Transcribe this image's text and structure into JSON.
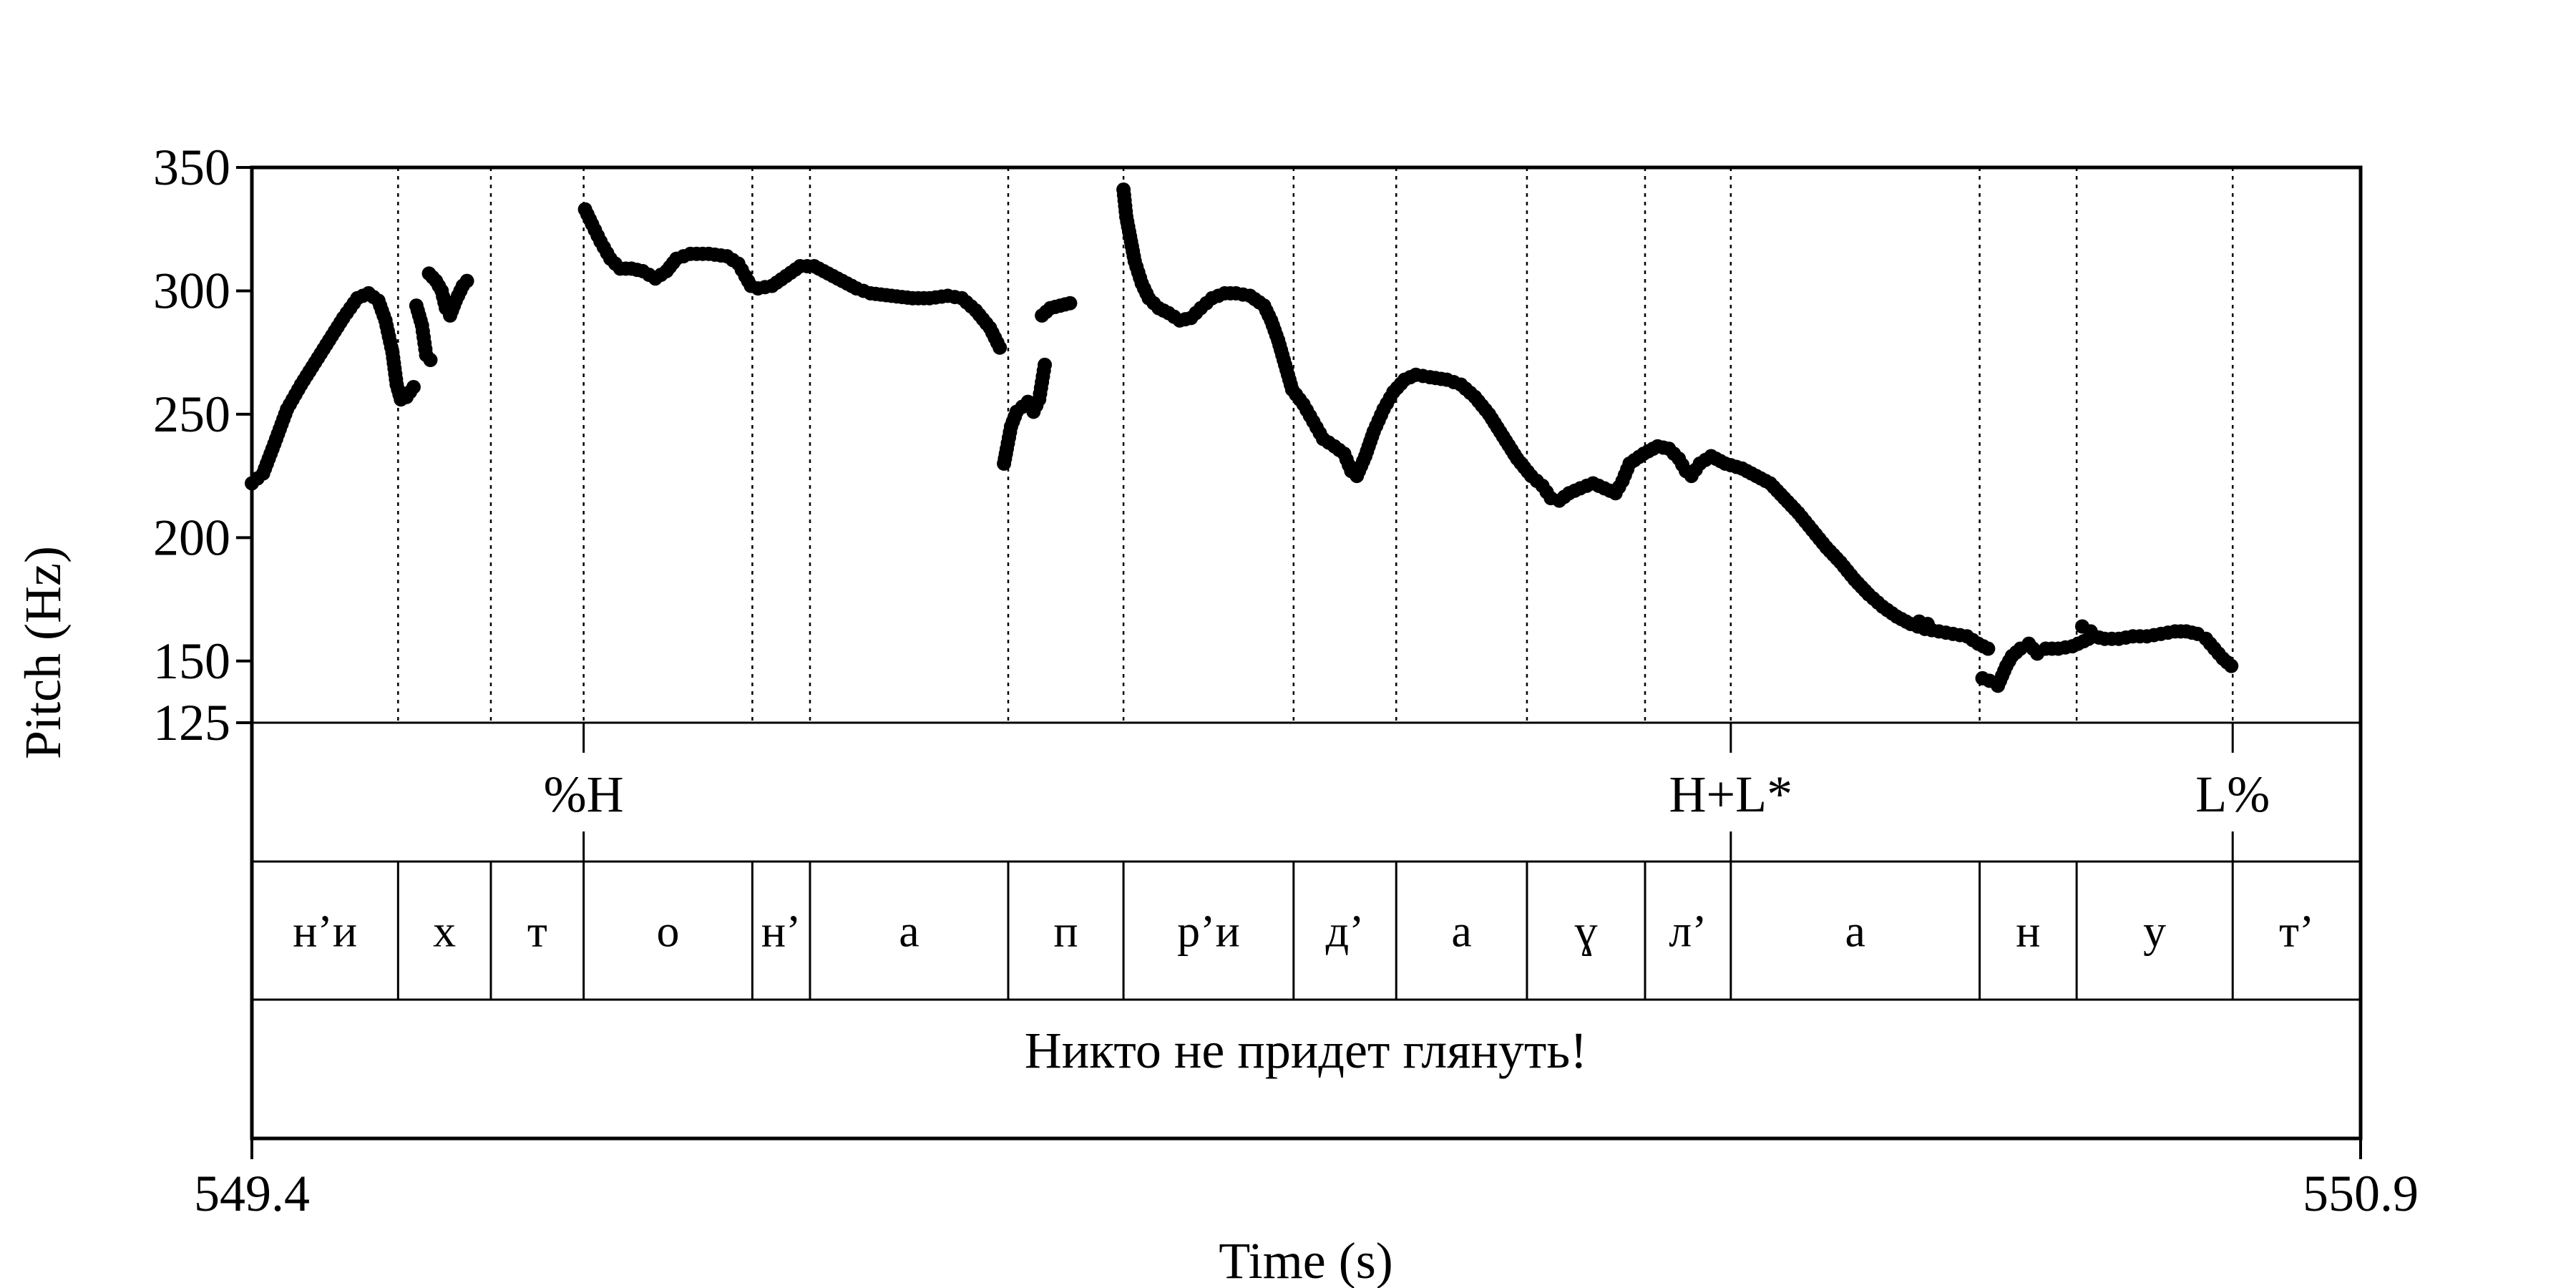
{
  "chart_data": {
    "type": "scatter",
    "xlabel": "Time (s)",
    "ylabel": "Pitch (Hz)",
    "xlim": [
      549.4,
      550.9
    ],
    "ylim": [
      125,
      350
    ],
    "x_ticks": [
      "549.4",
      "550.9"
    ],
    "y_ticks": [
      125,
      150,
      200,
      250,
      300,
      350
    ],
    "y_tick_labels": [
      "125",
      "150",
      "200",
      "250",
      "300",
      "350"
    ],
    "boundaries": [
      549.504,
      549.57,
      549.636,
      549.756,
      549.797,
      549.938,
      550.02,
      550.141,
      550.214,
      550.307,
      550.391,
      550.452,
      550.629,
      550.698,
      550.809
    ],
    "tones": [
      {
        "label": "%H",
        "t": 549.636
      },
      {
        "label": "H+L*",
        "t": 550.452
      },
      {
        "label": "L%",
        "t": 550.809
      }
    ],
    "segments": [
      {
        "label": "н’и",
        "start": 549.4,
        "end": 549.504
      },
      {
        "label": "х",
        "start": 549.504,
        "end": 549.57
      },
      {
        "label": "т",
        "start": 549.57,
        "end": 549.636
      },
      {
        "label": "о",
        "start": 549.636,
        "end": 549.756
      },
      {
        "label": "н’",
        "start": 549.756,
        "end": 549.797
      },
      {
        "label": "а",
        "start": 549.797,
        "end": 549.938
      },
      {
        "label": "п",
        "start": 549.938,
        "end": 550.02
      },
      {
        "label": "р’и",
        "start": 550.02,
        "end": 550.141
      },
      {
        "label": "д’",
        "start": 550.141,
        "end": 550.214
      },
      {
        "label": "а",
        "start": 550.214,
        "end": 550.307
      },
      {
        "label": "ɣ",
        "start": 550.307,
        "end": 550.391
      },
      {
        "label": "л’",
        "start": 550.391,
        "end": 550.452
      },
      {
        "label": "а",
        "start": 550.452,
        "end": 550.629
      },
      {
        "label": "н",
        "start": 550.629,
        "end": 550.698
      },
      {
        "label": "у",
        "start": 550.698,
        "end": 550.809
      },
      {
        "label": "т’",
        "start": 550.809,
        "end": 550.9
      }
    ],
    "sentence": "Никто не придет глянуть!",
    "pitch_segments": [
      [
        [
          549.4,
          222
        ],
        [
          549.408,
          226
        ],
        [
          549.416,
          238
        ],
        [
          549.425,
          252
        ],
        [
          549.435,
          262
        ],
        [
          549.445,
          271
        ],
        [
          549.455,
          280
        ],
        [
          549.465,
          289
        ],
        [
          549.475,
          297
        ],
        [
          549.483,
          299
        ],
        [
          549.49,
          296
        ],
        [
          549.495,
          288
        ],
        [
          549.5,
          275
        ],
        [
          549.503,
          262
        ],
        [
          549.506,
          256
        ],
        [
          549.51,
          257
        ],
        [
          549.515,
          261
        ]
      ],
      [
        [
          549.517,
          294
        ],
        [
          549.521,
          286
        ],
        [
          549.524,
          274
        ],
        [
          549.527,
          272
        ]
      ],
      [
        [
          549.526,
          307
        ],
        [
          549.531,
          304
        ],
        [
          549.535,
          300
        ],
        [
          549.538,
          293
        ],
        [
          549.541,
          290
        ],
        [
          549.545,
          296
        ],
        [
          549.55,
          302
        ],
        [
          549.553,
          304
        ]
      ],
      [
        [
          549.637,
          333
        ],
        [
          549.642,
          327
        ],
        [
          549.648,
          320
        ],
        [
          549.655,
          313
        ],
        [
          549.662,
          309
        ],
        [
          549.67,
          309
        ],
        [
          549.678,
          308
        ],
        [
          549.687,
          305
        ],
        [
          549.695,
          308
        ],
        [
          549.702,
          313
        ],
        [
          549.712,
          315
        ],
        [
          549.725,
          315
        ],
        [
          549.738,
          314
        ],
        [
          549.746,
          311
        ],
        [
          549.751,
          306
        ],
        [
          549.755,
          302
        ],
        [
          549.76,
          301
        ],
        [
          549.77,
          302
        ],
        [
          549.78,
          306
        ],
        [
          549.79,
          310
        ],
        [
          549.8,
          310
        ],
        [
          549.81,
          307
        ],
        [
          549.82,
          304
        ],
        [
          549.83,
          301
        ],
        [
          549.84,
          299
        ],
        [
          549.855,
          298
        ],
        [
          549.87,
          297
        ],
        [
          549.882,
          297
        ],
        [
          549.895,
          298
        ],
        [
          549.905,
          297
        ],
        [
          549.915,
          292
        ],
        [
          549.925,
          285
        ],
        [
          549.932,
          277
        ]
      ],
      [
        [
          549.935,
          230
        ],
        [
          549.937,
          236
        ],
        [
          549.94,
          245
        ],
        [
          549.944,
          251
        ],
        [
          549.948,
          253
        ],
        [
          549.952,
          255
        ],
        [
          549.956,
          251
        ],
        [
          549.96,
          256
        ],
        [
          549.964,
          270
        ]
      ],
      [
        [
          549.962,
          290
        ],
        [
          549.968,
          293
        ],
        [
          549.975,
          294
        ],
        [
          549.982,
          295
        ]
      ],
      [
        [
          550.02,
          341
        ],
        [
          550.022,
          330
        ],
        [
          550.024,
          324
        ],
        [
          550.028,
          312
        ],
        [
          550.033,
          303
        ],
        [
          550.038,
          297
        ],
        [
          550.045,
          293
        ],
        [
          550.052,
          291
        ],
        [
          550.06,
          288
        ],
        [
          550.068,
          289
        ],
        [
          550.075,
          293
        ],
        [
          550.083,
          297
        ],
        [
          550.092,
          299
        ],
        [
          550.1,
          299
        ],
        [
          550.11,
          298
        ],
        [
          550.12,
          294
        ],
        [
          550.125,
          288
        ],
        [
          550.13,
          280
        ],
        [
          550.135,
          270
        ],
        [
          550.14,
          260
        ],
        [
          550.148,
          254
        ],
        [
          550.155,
          247
        ],
        [
          550.162,
          240
        ],
        [
          550.17,
          237
        ],
        [
          550.177,
          234
        ],
        [
          550.182,
          227
        ],
        [
          550.186,
          225
        ],
        [
          550.192,
          233
        ],
        [
          550.198,
          243
        ],
        [
          550.205,
          252
        ],
        [
          550.212,
          259
        ],
        [
          550.22,
          264
        ],
        [
          550.228,
          266
        ],
        [
          550.238,
          265
        ],
        [
          550.25,
          264
        ],
        [
          550.26,
          262
        ],
        [
          550.27,
          257
        ],
        [
          550.28,
          250
        ],
        [
          550.29,
          241
        ],
        [
          550.3,
          232
        ],
        [
          550.31,
          225
        ],
        [
          550.318,
          221
        ],
        [
          550.324,
          216
        ],
        [
          550.33,
          215
        ],
        [
          550.337,
          218
        ],
        [
          550.345,
          220
        ],
        [
          550.354,
          222
        ],
        [
          550.362,
          220
        ],
        [
          550.37,
          218
        ],
        [
          550.375,
          223
        ],
        [
          550.38,
          230
        ],
        [
          550.39,
          234
        ],
        [
          550.4,
          237
        ],
        [
          550.408,
          236
        ],
        [
          550.415,
          232
        ],
        [
          550.42,
          227
        ],
        [
          550.424,
          225
        ],
        [
          550.43,
          230
        ],
        [
          550.438,
          233
        ],
        [
          550.448,
          230
        ],
        [
          550.46,
          228
        ],
        [
          550.47,
          225
        ],
        [
          550.48,
          222
        ],
        [
          550.49,
          216
        ],
        [
          550.5,
          210
        ],
        [
          550.51,
          203
        ],
        [
          550.52,
          196
        ],
        [
          550.53,
          190
        ],
        [
          550.54,
          183
        ],
        [
          550.55,
          177
        ],
        [
          550.56,
          172
        ],
        [
          550.57,
          168
        ],
        [
          550.58,
          165
        ],
        [
          550.59,
          163
        ],
        [
          550.6,
          162
        ],
        [
          550.61,
          161
        ],
        [
          550.62,
          160
        ],
        [
          550.628,
          157
        ],
        [
          550.635,
          155
        ]
      ],
      [
        [
          550.586,
          166
        ],
        [
          550.592,
          165
        ]
      ],
      [
        [
          550.631,
          143
        ],
        [
          550.636,
          142
        ],
        [
          550.642,
          140
        ],
        [
          550.648,
          148
        ],
        [
          550.652,
          152
        ],
        [
          550.658,
          155
        ],
        [
          550.664,
          157
        ],
        [
          550.67,
          153
        ],
        [
          550.676,
          155
        ],
        [
          550.685,
          155
        ],
        [
          550.695,
          156
        ],
        [
          550.703,
          158
        ],
        [
          550.71,
          160
        ],
        [
          550.718,
          159
        ],
        [
          550.728,
          159
        ],
        [
          550.738,
          160
        ],
        [
          550.748,
          160
        ],
        [
          550.758,
          161
        ],
        [
          550.768,
          162
        ],
        [
          550.776,
          162
        ],
        [
          550.784,
          161
        ],
        [
          550.79,
          159
        ],
        [
          550.796,
          155
        ],
        [
          550.802,
          151
        ],
        [
          550.808,
          148
        ]
      ],
      [
        [
          550.702,
          164
        ],
        [
          550.708,
          162
        ]
      ]
    ]
  }
}
